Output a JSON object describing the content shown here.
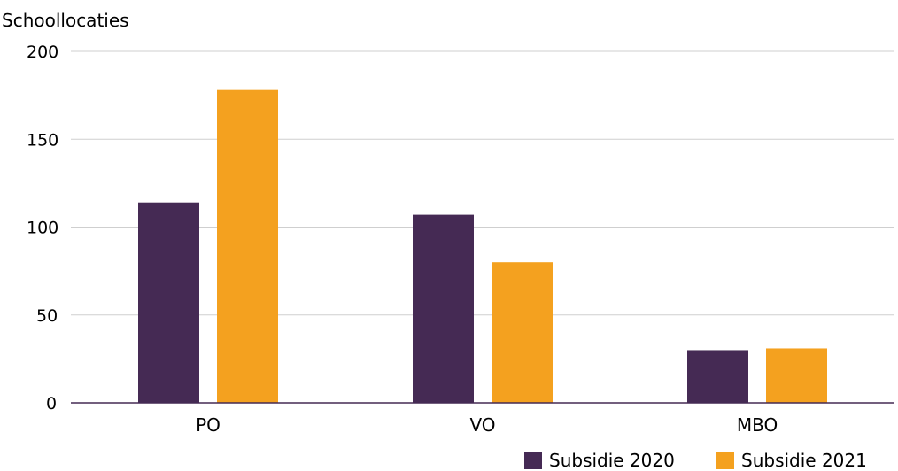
{
  "chart_data": {
    "type": "bar",
    "ylabel": "Schoollocaties",
    "xlabel": "",
    "categories": [
      "PO",
      "VO",
      "MBO"
    ],
    "series": [
      {
        "name": "Subsidie 2020",
        "color": "#452a54",
        "values": [
          114,
          107,
          30
        ]
      },
      {
        "name": "Subsidie 2021",
        "color": "#f4a11f",
        "values": [
          178,
          80,
          31
        ]
      }
    ],
    "ylim": [
      0,
      200
    ],
    "yticks": [
      0,
      50,
      100,
      150,
      200
    ],
    "grid": true,
    "legend": "bottom-right"
  }
}
